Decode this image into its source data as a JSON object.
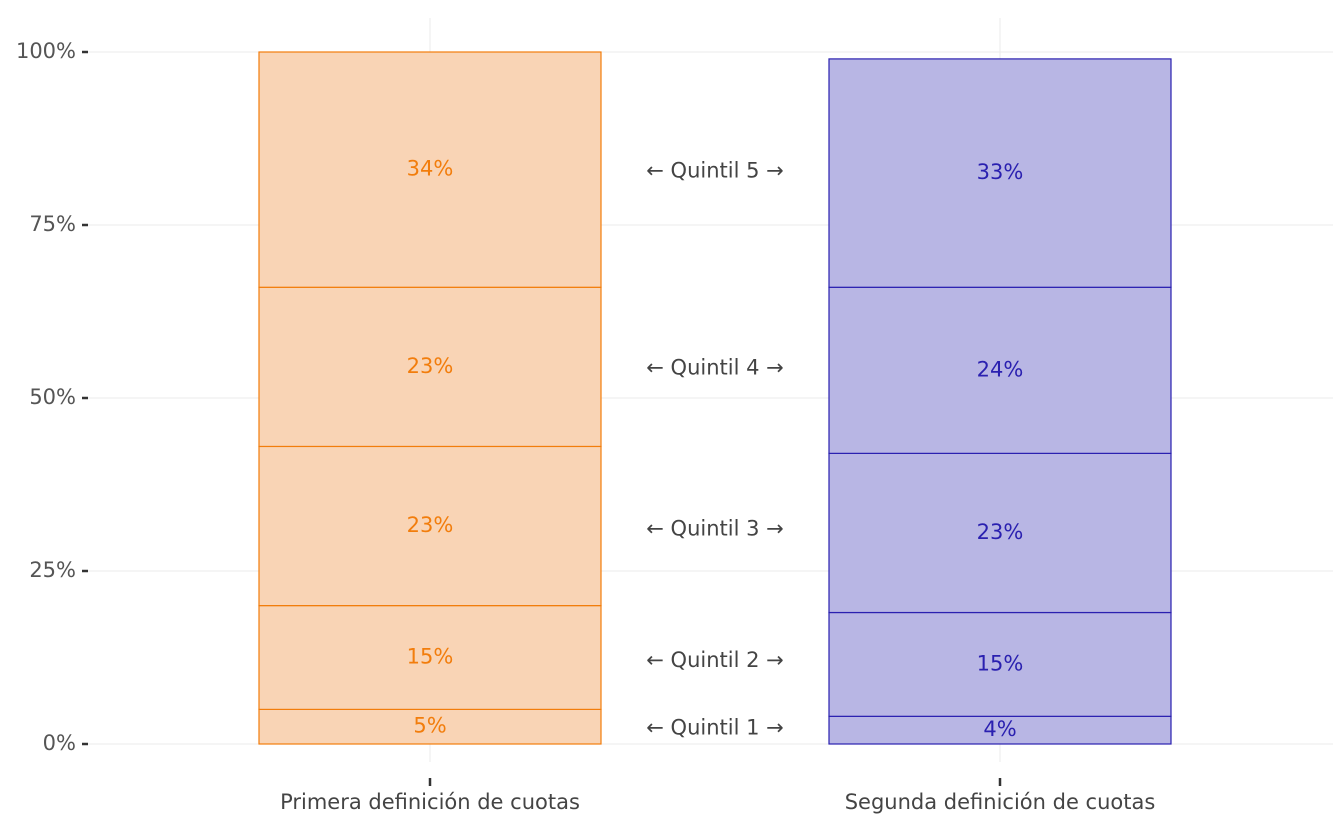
{
  "chart_data": {
    "type": "stacked_bar",
    "categories": [
      "Primera definición de cuotas",
      "Segunda definición de cuotas"
    ],
    "bar_fill": [
      "#f9d4b5",
      "#b8b6e4"
    ],
    "bar_edge": [
      "#f27d0c",
      "#2a20b0"
    ],
    "series": [
      {
        "name": "← Quintil 1 →",
        "values": [
          5,
          4
        ],
        "value_labels": [
          "5%",
          "4%"
        ]
      },
      {
        "name": "← Quintil 2 →",
        "values": [
          15,
          15
        ],
        "value_labels": [
          "15%",
          "15%"
        ]
      },
      {
        "name": "← Quintil 3 →",
        "values": [
          23,
          23
        ],
        "value_labels": [
          "23%",
          "23%"
        ]
      },
      {
        "name": "← Quintil 4 →",
        "values": [
          23,
          24
        ],
        "value_labels": [
          "23%",
          "24%"
        ]
      },
      {
        "name": "← Quintil 5 →",
        "values": [
          34,
          33
        ],
        "value_labels": [
          "34%",
          "33%"
        ]
      }
    ],
    "ylim": [
      0,
      100
    ],
    "yticks": [
      {
        "value": 0,
        "label": "0%"
      },
      {
        "value": 25,
        "label": "25%"
      },
      {
        "value": 50,
        "label": "50%"
      },
      {
        "value": 75,
        "label": "75%"
      },
      {
        "value": 100,
        "label": "100%"
      }
    ],
    "grid": true
  }
}
